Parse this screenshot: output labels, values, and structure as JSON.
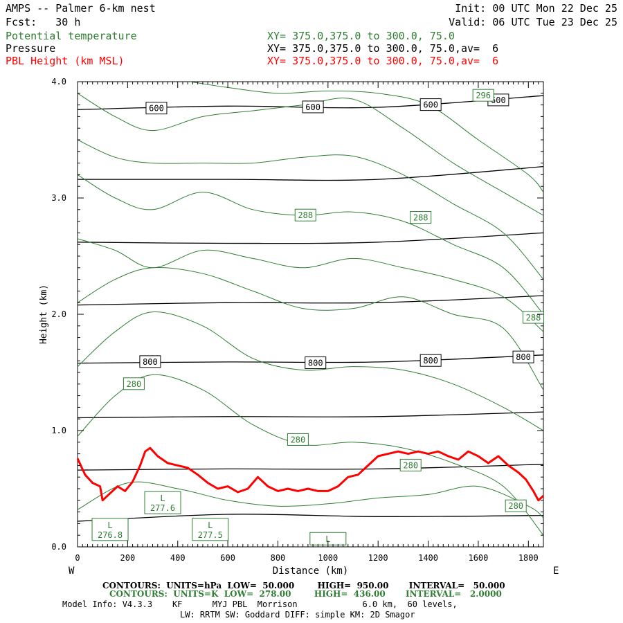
{
  "header": {
    "title": "AMPS -- Palmer 6-km nest",
    "init": "Init: 00 UTC Mon 22 Dec 25",
    "fcst": "Fcst:   30 h",
    "valid": "Valid: 06 UTC Tue 23 Dec 25",
    "field1": "Potential temperature",
    "field1_xy": "XY= 375.0,375.0 to 300.0, 75.0",
    "field2": "Pressure",
    "field2_xy": "XY= 375.0,375.0 to 300.0, 75.0,av=  6",
    "field3": "PBL Height (km MSL)",
    "field3_xy": "XY= 375.0,375.0 to 300.0, 75.0,av=  6"
  },
  "footer": {
    "line1": "CONTOURS:  UNITS=hPa  LOW=  50.000        HIGH=  950.00       INTERVAL=   50.000",
    "line2": "CONTOURS:  UNITS=K  LOW=  278.00        HIGH=  436.00       INTERVAL=   2.0000",
    "line3": "Model Info: V4.3.3    KF      MYJ PBL  Morrison             6.0 km,  60 levels,",
    "line4": "LW: RRTM SW: Goddard DIFF: simple KM: 2D Smagor"
  },
  "colors": {
    "theta": "#2e7d32",
    "pressure": "#000000",
    "pbl": "#ff0000"
  },
  "chart_data": {
    "type": "line",
    "xlabel": "Distance (km)",
    "ylabel": "Height (km)",
    "xlim": [
      0,
      1860
    ],
    "ylim": [
      0,
      4.0
    ],
    "x_ticks": [
      0,
      200,
      400,
      600,
      800,
      1000,
      1200,
      1400,
      1600,
      1800
    ],
    "y_ticks": [
      "0.0",
      "1.0",
      "2.0",
      "3.0",
      "4.0"
    ],
    "x_left_label": "W",
    "x_right_label": "E",
    "pressure_contours": [
      {
        "x": [
          0,
          600,
          1200,
          1860
        ],
        "y": [
          3.76,
          3.79,
          3.78,
          3.88
        ]
      },
      {
        "x": [
          0,
          600,
          1200,
          1860
        ],
        "y": [
          3.16,
          3.16,
          3.16,
          3.27
        ]
      },
      {
        "x": [
          0,
          600,
          1200,
          1860
        ],
        "y": [
          2.62,
          2.61,
          2.62,
          2.7
        ]
      },
      {
        "x": [
          0,
          600,
          1200,
          1860
        ],
        "y": [
          2.08,
          2.1,
          2.1,
          2.16
        ]
      },
      {
        "x": [
          0,
          600,
          1200,
          1860
        ],
        "y": [
          1.58,
          1.59,
          1.59,
          1.65
        ]
      },
      {
        "x": [
          0,
          600,
          1200,
          1860
        ],
        "y": [
          1.11,
          1.12,
          1.12,
          1.16
        ]
      },
      {
        "x": [
          0,
          600,
          1200,
          1860
        ],
        "y": [
          0.66,
          0.67,
          0.67,
          0.71
        ]
      },
      {
        "x": [
          0,
          600,
          1200,
          1860
        ],
        "y": [
          0.22,
          0.28,
          0.26,
          0.27
        ]
      }
    ],
    "pressure_labels": [
      {
        "x": 315,
        "y": 3.77,
        "text": "600"
      },
      {
        "x": 940,
        "y": 3.78,
        "text": "600"
      },
      {
        "x": 1410,
        "y": 3.8,
        "text": "600"
      },
      {
        "x": 1680,
        "y": 3.84,
        "text": "600"
      },
      {
        "x": 290,
        "y": 1.59,
        "text": "800"
      },
      {
        "x": 950,
        "y": 1.58,
        "text": "800"
      },
      {
        "x": 1410,
        "y": 1.6,
        "text": "800"
      },
      {
        "x": 1780,
        "y": 1.63,
        "text": "800"
      }
    ],
    "theta_contours": [
      {
        "x": [
          0,
          200,
          400,
          600,
          800,
          1000,
          1200,
          1400,
          1600,
          1800,
          1860
        ],
        "y": [
          0.32,
          0.55,
          0.5,
          0.4,
          0.35,
          0.37,
          0.42,
          0.45,
          0.52,
          0.35,
          0.25
        ]
      },
      {
        "x": [
          0,
          150,
          300,
          500,
          700,
          900,
          1100,
          1300,
          1500,
          1700,
          1860
        ],
        "y": [
          0.95,
          1.3,
          1.48,
          1.35,
          1.05,
          0.88,
          0.9,
          0.85,
          0.72,
          0.52,
          0.1
        ]
      },
      {
        "x": [
          0,
          150,
          300,
          500,
          700,
          900,
          1100,
          1300,
          1500,
          1700,
          1860
        ],
        "y": [
          1.55,
          1.85,
          2.02,
          1.9,
          1.62,
          1.52,
          1.55,
          1.52,
          1.4,
          1.2,
          1.0
        ]
      },
      {
        "x": [
          0,
          150,
          300,
          500,
          700,
          900,
          1100,
          1300,
          1500,
          1700,
          1860
        ],
        "y": [
          2.1,
          2.3,
          2.4,
          2.35,
          2.2,
          2.05,
          2.05,
          2.15,
          2.0,
          1.88,
          1.35
        ]
      },
      {
        "x": [
          0,
          150,
          300,
          500,
          700,
          900,
          1100,
          1300,
          1500,
          1700,
          1860
        ],
        "y": [
          2.65,
          2.55,
          2.4,
          2.55,
          2.48,
          2.4,
          2.48,
          2.4,
          2.3,
          2.15,
          1.85
        ]
      },
      {
        "x": [
          0,
          150,
          300,
          500,
          700,
          900,
          1100,
          1300,
          1500,
          1700,
          1860
        ],
        "y": [
          3.2,
          3.0,
          2.9,
          3.05,
          2.9,
          2.85,
          2.88,
          2.8,
          2.6,
          2.4,
          2.0
        ]
      },
      {
        "x": [
          0,
          150,
          300,
          500,
          700,
          900,
          1100,
          1300,
          1500,
          1700,
          1860
        ],
        "y": [
          3.5,
          3.35,
          3.3,
          3.3,
          3.3,
          3.35,
          3.36,
          3.2,
          2.95,
          2.7,
          2.3
        ]
      },
      {
        "x": [
          0,
          150,
          300,
          500,
          700,
          900,
          1100,
          1300,
          1500,
          1700,
          1860
        ],
        "y": [
          3.9,
          3.7,
          3.58,
          3.7,
          3.75,
          3.8,
          3.85,
          3.6,
          3.3,
          3.05,
          2.85
        ]
      },
      {
        "x": [
          450,
          600,
          800,
          1000,
          1200,
          1400,
          1600,
          1800,
          1860
        ],
        "y": [
          4.0,
          3.95,
          3.9,
          3.92,
          3.9,
          3.8,
          3.5,
          3.2,
          3.05
        ]
      }
    ],
    "theta_labels": [
      {
        "x": 1620,
        "y": 3.88,
        "text": "296"
      },
      {
        "x": 910,
        "y": 2.85,
        "text": "288"
      },
      {
        "x": 1370,
        "y": 2.83,
        "text": "288"
      },
      {
        "x": 1820,
        "y": 1.97,
        "text": "288"
      },
      {
        "x": 225,
        "y": 1.4,
        "text": "280"
      },
      {
        "x": 880,
        "y": 0.92,
        "text": "280"
      },
      {
        "x": 1330,
        "y": 0.7,
        "text": "280"
      },
      {
        "x": 1750,
        "y": 0.35,
        "text": "280"
      }
    ],
    "theta_lows": [
      {
        "x": 340,
        "y": 0.38,
        "text": "L",
        "value": "277.6"
      },
      {
        "x": 130,
        "y": 0.15,
        "text": "L",
        "value": "276.8"
      },
      {
        "x": 530,
        "y": 0.15,
        "text": "L",
        "value": "277.5"
      },
      {
        "x": 1000,
        "y": 0.07,
        "text": "L",
        "value": ""
      }
    ],
    "pbl_height": {
      "x": [
        0,
        30,
        60,
        90,
        100,
        130,
        160,
        190,
        220,
        250,
        270,
        290,
        320,
        360,
        400,
        440,
        480,
        520,
        560,
        600,
        640,
        680,
        720,
        760,
        800,
        840,
        880,
        920,
        960,
        1000,
        1040,
        1080,
        1120,
        1160,
        1200,
        1240,
        1280,
        1320,
        1360,
        1400,
        1440,
        1480,
        1520,
        1560,
        1600,
        1640,
        1680,
        1720,
        1760,
        1790,
        1820,
        1840,
        1860
      ],
      "y": [
        0.76,
        0.62,
        0.55,
        0.52,
        0.4,
        0.46,
        0.52,
        0.48,
        0.56,
        0.7,
        0.82,
        0.85,
        0.78,
        0.72,
        0.7,
        0.68,
        0.62,
        0.55,
        0.5,
        0.52,
        0.47,
        0.5,
        0.6,
        0.52,
        0.48,
        0.5,
        0.48,
        0.5,
        0.48,
        0.48,
        0.52,
        0.6,
        0.62,
        0.7,
        0.78,
        0.8,
        0.82,
        0.8,
        0.82,
        0.8,
        0.82,
        0.78,
        0.75,
        0.82,
        0.78,
        0.72,
        0.78,
        0.7,
        0.64,
        0.58,
        0.48,
        0.4,
        0.44
      ]
    }
  }
}
